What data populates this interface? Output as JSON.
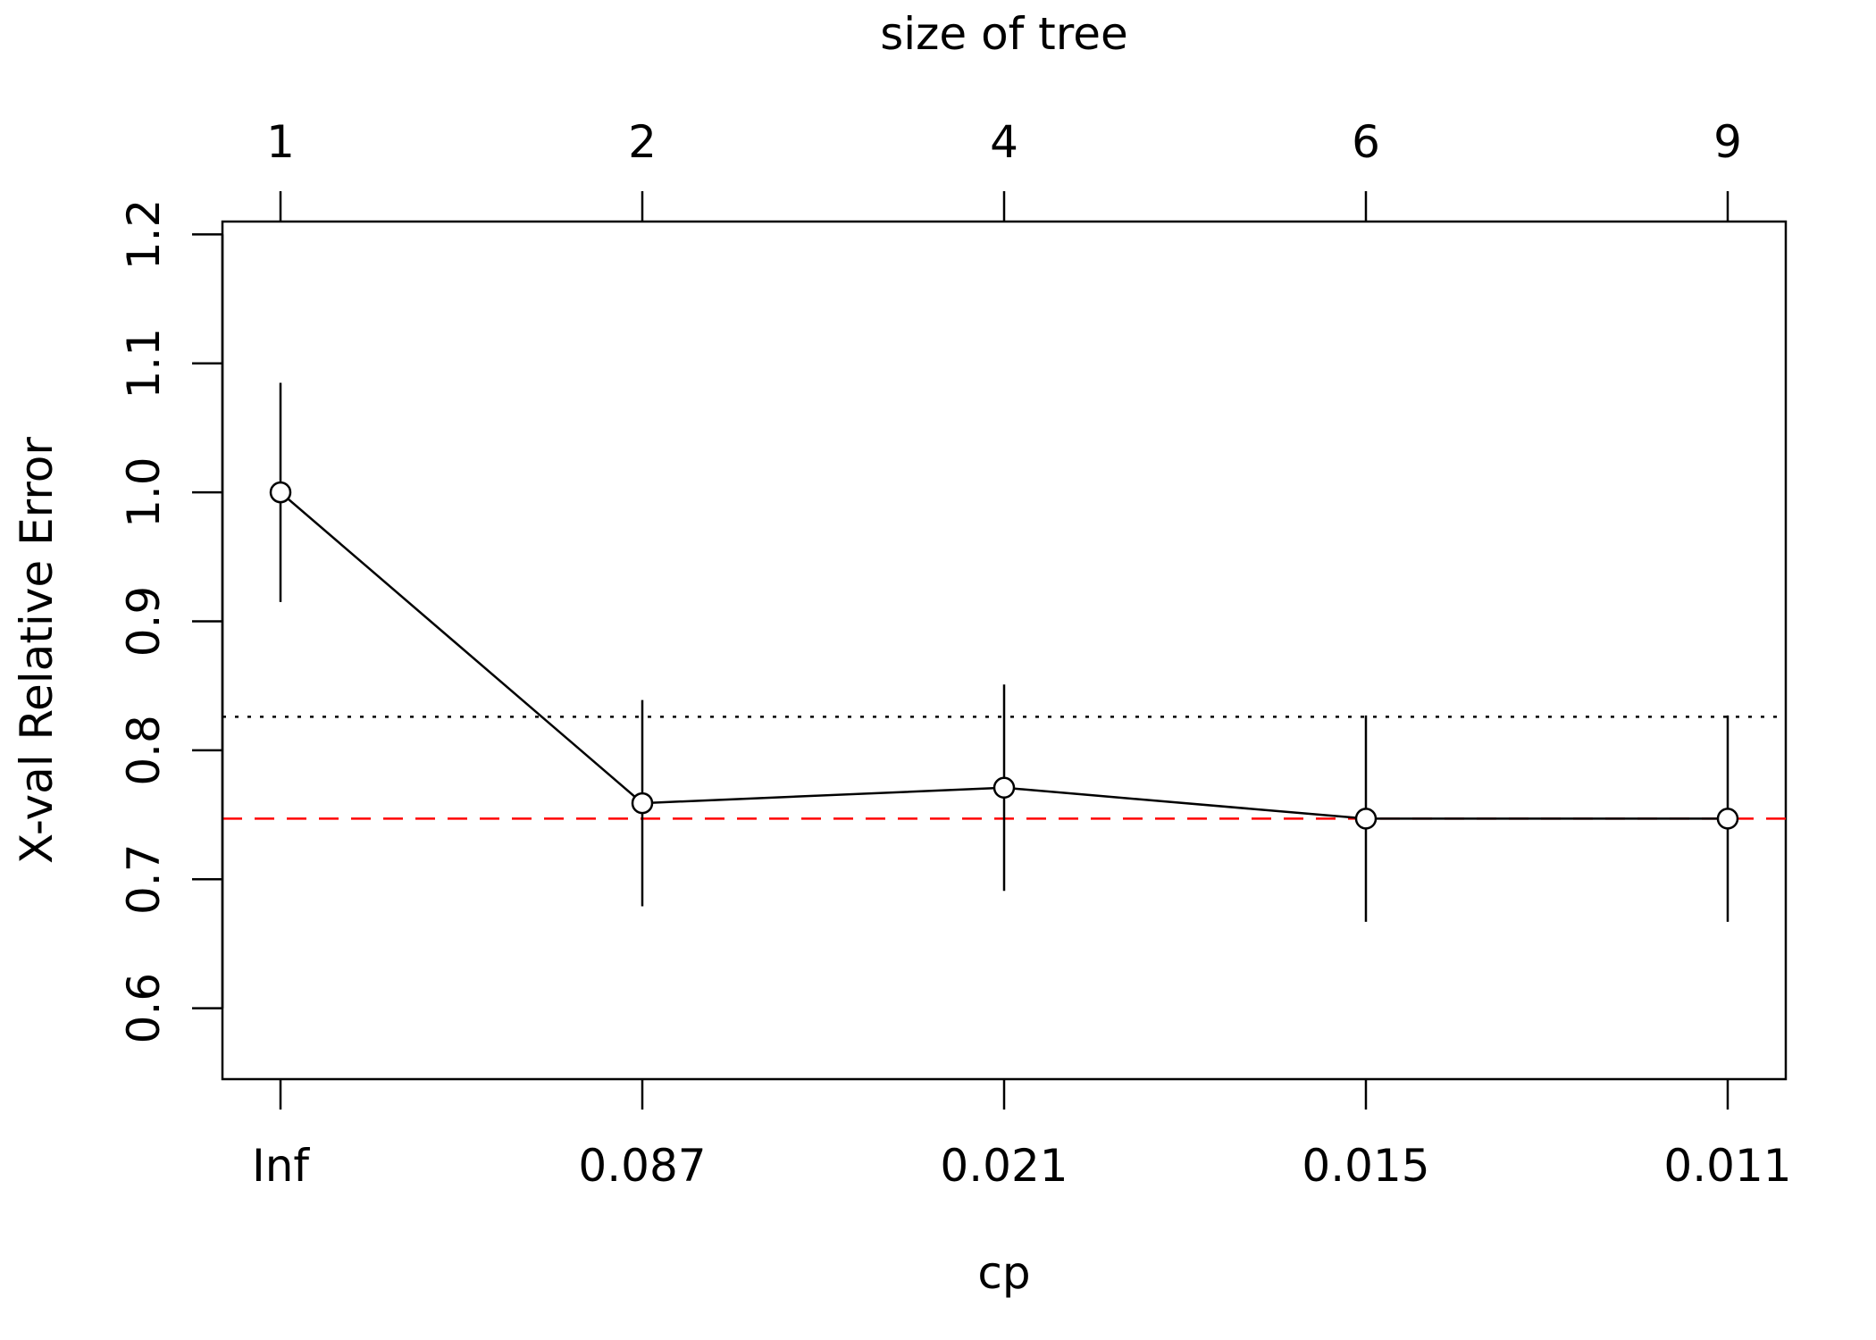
{
  "chart_data": {
    "type": "line",
    "title": "",
    "xlabel": "cp",
    "x2label": "size of tree",
    "ylabel": "X-val Relative Error",
    "categories": [
      "Inf",
      "0.087",
      "0.021",
      "0.015",
      "0.011"
    ],
    "top_categories": [
      "1",
      "2",
      "4",
      "6",
      "9"
    ],
    "ylim": [
      0.545,
      1.21
    ],
    "y_ticks": [
      "0.6",
      "0.7",
      "0.8",
      "0.9",
      "1.0",
      "1.1",
      "1.2"
    ],
    "grid": false,
    "series": [
      {
        "values": [
          1.0,
          0.759,
          0.771,
          0.747,
          0.747
        ],
        "lower": [
          0.915,
          0.679,
          0.691,
          0.667,
          0.667
        ],
        "upper": [
          1.085,
          0.839,
          0.851,
          0.827,
          0.827
        ],
        "color": "#000000"
      }
    ],
    "reference_lines": [
      {
        "value": 0.826,
        "style": "dotted",
        "color": "#000000"
      },
      {
        "value": 0.747,
        "style": "dashed",
        "color": "#ff0000"
      }
    ]
  }
}
